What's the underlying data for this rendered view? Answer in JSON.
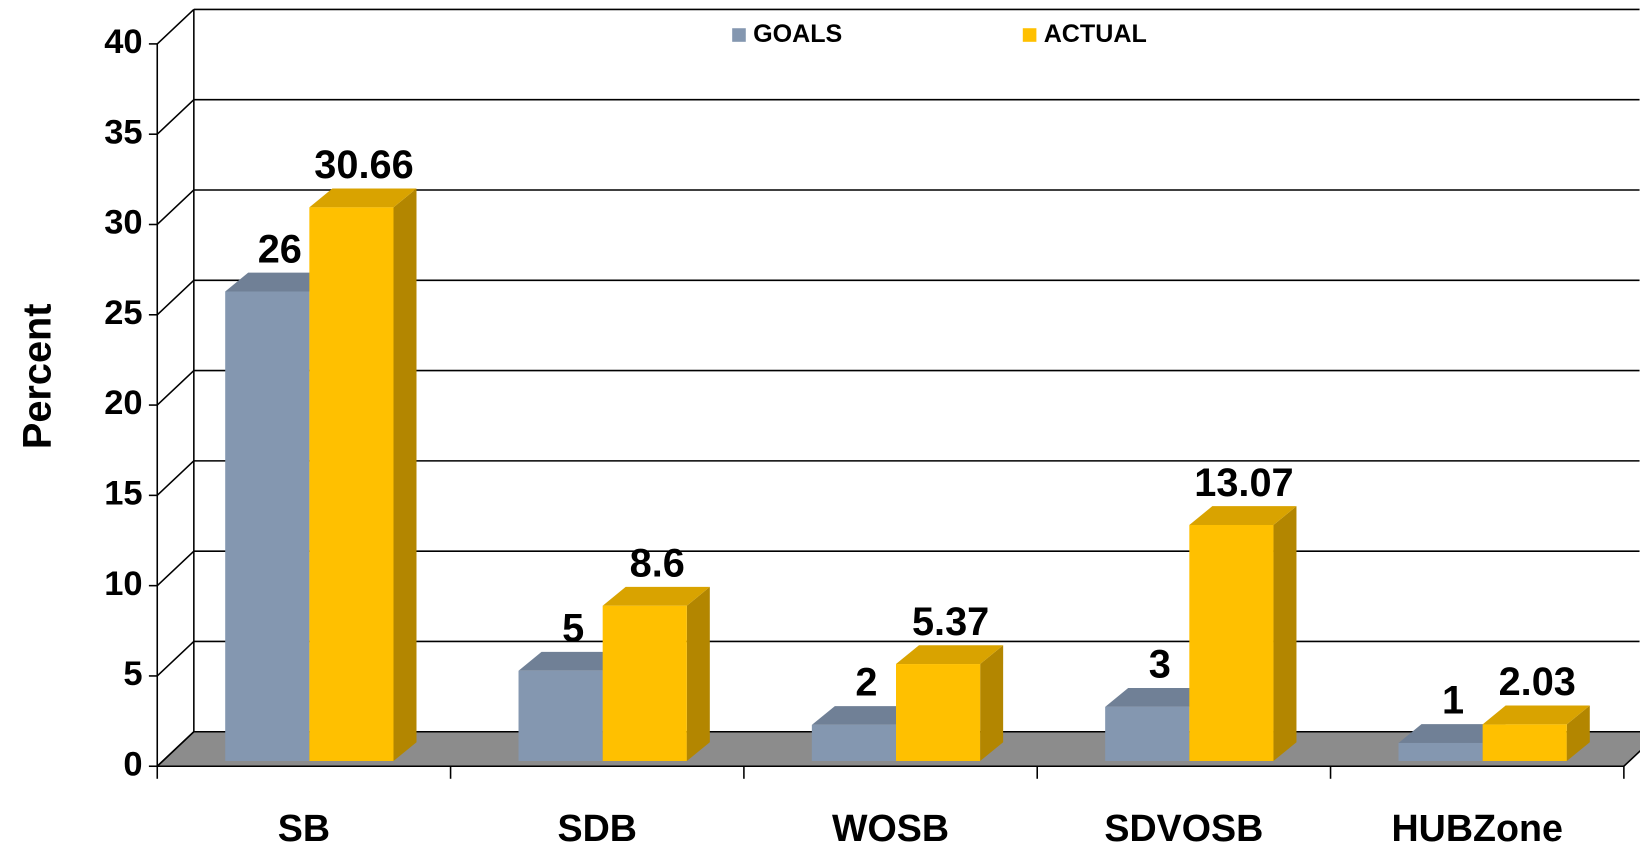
{
  "chart_data": {
    "type": "bar3d",
    "y_label": "Percent",
    "categories": [
      "SB",
      "SDB",
      "WOSB",
      "SDVOSB",
      "HUBZone"
    ],
    "series": [
      {
        "name": "GOALS",
        "color": "#8497b0",
        "values": [
          26,
          5,
          2,
          3,
          1
        ]
      },
      {
        "name": "ACTUAL",
        "color": "#ffc000",
        "values": [
          30.66,
          8.6,
          5.37,
          13.07,
          2.03
        ]
      }
    ],
    "ylim": [
      0,
      40
    ],
    "yticks": [
      0,
      5,
      10,
      15,
      20,
      25,
      30,
      35,
      40
    ],
    "grid": true,
    "legend": "top"
  }
}
